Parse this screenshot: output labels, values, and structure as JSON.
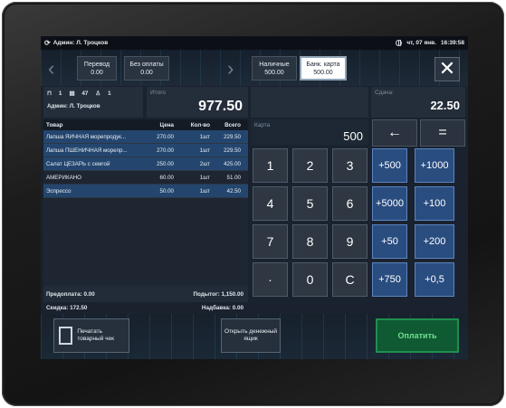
{
  "status": {
    "user": "Админ: Л. Троцков",
    "date": "чт, 07 янв.",
    "time": "16:39:58"
  },
  "top_buttons": {
    "transfer": {
      "label": "Перевод",
      "value": "0.00"
    },
    "no_payment": {
      "label": "Без оплаты",
      "value": "0.00"
    },
    "cash": {
      "label": "Наличные",
      "value": "500.00"
    },
    "bank_card": {
      "label": "Банк. карта",
      "value": "500.00"
    }
  },
  "info": {
    "table_num": "1",
    "check_num": "47",
    "guests": "1",
    "admin": "Админ: Л. Троцков",
    "itogo_label": "Итого",
    "itogo_value": "977.50",
    "change_label": "Сдача:",
    "change_value": "22.50",
    "card_label": "Карта",
    "card_value": "500"
  },
  "table": {
    "headers": [
      "Товар",
      "Цена",
      "Кол-во",
      "Всего"
    ],
    "rows": [
      {
        "name": "Лапша ЯИЧНАЯ морепродук...",
        "price": "270.00",
        "qty": "1шт",
        "total": "229.50"
      },
      {
        "name": "Лапша ПШЕНИЧНАЯ морепр...",
        "price": "270.00",
        "qty": "1шт",
        "total": "229.50"
      },
      {
        "name": "Салат ЦЕЗАРЬ с семгой",
        "price": "250.00",
        "qty": "2шт",
        "total": "425.00"
      },
      {
        "name": "АМЕРИКАНО",
        "price": "60.00",
        "qty": "1шт",
        "total": "51.00"
      },
      {
        "name": "Эспрессо",
        "price": "50.00",
        "qty": "1шт",
        "total": "42.50"
      }
    ]
  },
  "summary": {
    "prepay": "Предоплата: 0.00",
    "subtotal": "Подытог: 1,150.00",
    "discount": "Скидка: 172.50",
    "markup": "Надбавка: 0.00"
  },
  "keypad": {
    "backspace": "←",
    "equals": "=",
    "digits": [
      "1",
      "2",
      "3",
      "4",
      "5",
      "6",
      "7",
      "8",
      "9",
      "·",
      "0",
      "C"
    ],
    "quick": [
      "+500",
      "+1000",
      "+5000",
      "+100",
      "+50",
      "+200",
      "+750",
      "+0,5"
    ]
  },
  "bottom": {
    "print_receipt": "Печатать товарный чек",
    "open_drawer": "Открыть денежный ящик",
    "pay": "Оплатить"
  },
  "colors": {
    "pay_green": "#0f5a32",
    "quick_blue": "#2a4d80",
    "selected_row": "#24466e"
  }
}
